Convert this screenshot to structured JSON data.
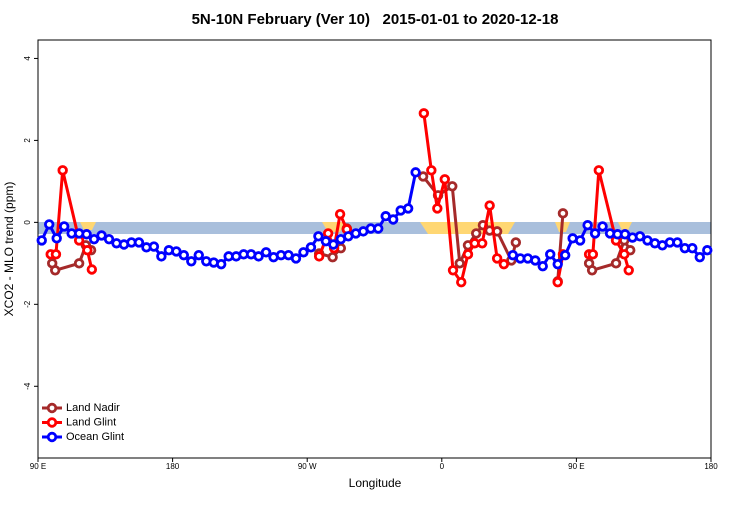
{
  "chart_data": {
    "type": "line",
    "title": "5N-10N February (Ver 10)   2015-01-01 to 2020-12-18",
    "x_label": "Longitude",
    "y_label": "XCO2 - MLO trend (ppm)",
    "xlim": [
      90,
      540
    ],
    "ylim": [
      -5.75,
      4.45
    ],
    "xticks": [
      {
        "value": 90,
        "label": "90 E"
      },
      180,
      {
        "value": 270,
        "label": "90 W"
      },
      {
        "value": 360,
        "label": "0"
      },
      {
        "value": 450,
        "label": "90 E"
      },
      {
        "value": 540,
        "label": "180"
      }
    ],
    "yticks": [
      -4,
      -2,
      0,
      2,
      4
    ],
    "legend": "bottom-left",
    "series": [
      {
        "name": "Land Nadir",
        "color": "#a52a2a",
        "x": [
          99.5,
          101.5,
          117.5,
          122,
          125.5,
          200,
          278,
          287,
          292.5,
          296.5,
          320,
          347.5,
          357.5,
          367,
          372,
          377.5,
          383,
          387.5,
          392,
          397,
          406.5,
          409.5,
          420,
          437.5,
          441,
          450,
          458.5,
          460.5,
          476.5,
          482,
          486
        ],
        "values": [
          -1.0,
          -1.17,
          -1.0,
          -0.56,
          -0.68,
          null,
          -0.76,
          -0.85,
          -0.63,
          -0.15,
          null,
          1.12,
          0.66,
          0.88,
          -1.0,
          -0.56,
          -0.27,
          -0.07,
          -0.2,
          -0.22,
          -0.93,
          -0.49,
          null,
          -1.44,
          0.22,
          null,
          -1.0,
          -1.17,
          -1.0,
          -0.44,
          -0.68
        ]
      },
      {
        "name": "Land Glint",
        "color": "#ff0000",
        "x": [
          98.5,
          102,
          106.5,
          117.5,
          123,
          126,
          200,
          278,
          284,
          288,
          292,
          296.5,
          320,
          348,
          353,
          357,
          362,
          367.5,
          373,
          377.5,
          382,
          387,
          392,
          397,
          401.5,
          420,
          437.5,
          441,
          450,
          458.5,
          461,
          465,
          476.5,
          482,
          485
        ],
        "values": [
          -0.78,
          -0.78,
          1.27,
          -0.44,
          -0.68,
          -1.15,
          null,
          -0.83,
          -0.27,
          -0.63,
          0.2,
          -0.17,
          null,
          2.66,
          1.27,
          0.34,
          1.05,
          -1.17,
          -1.46,
          -0.78,
          -0.51,
          -0.51,
          0.41,
          -0.88,
          -1.02,
          null,
          -1.46,
          -0.78,
          null,
          -0.78,
          -0.78,
          1.27,
          -0.44,
          -0.78,
          -1.17
        ]
      },
      {
        "name": "Ocean Glint",
        "color": "#0000ff",
        "x": [
          92.5,
          97.5,
          102.5,
          107.5,
          112.5,
          117.5,
          122.5,
          127.5,
          132.5,
          137.5,
          142.5,
          147.5,
          152.5,
          157.5,
          162.5,
          167.5,
          172.5,
          177.5,
          182.5,
          187.5,
          192.5,
          197.5,
          202.5,
          207.5,
          212.5,
          217.5,
          222.5,
          227.5,
          232.5,
          237.5,
          242.5,
          247.5,
          252.5,
          257.5,
          262.5,
          267.5,
          272.5,
          277.5,
          282.5,
          287.5,
          292.5,
          297.5,
          302.5,
          307.5,
          312.5,
          317.5,
          322.5,
          327.5,
          332.5,
          337.5,
          342.5,
          375,
          407.5,
          412.5,
          417.5,
          422.5,
          427.5,
          432.5,
          437.5,
          442.5,
          447.5,
          452.5,
          457.5,
          462.5,
          467.5,
          472.5,
          477.5,
          482.5,
          487.5,
          492.5,
          497.5,
          502.5,
          507.5,
          512.5,
          517.5,
          522.5,
          527.5,
          532.5,
          537.5
        ],
        "values": [
          -0.44,
          -0.05,
          -0.39,
          -0.1,
          -0.27,
          -0.27,
          -0.29,
          -0.41,
          -0.32,
          -0.41,
          -0.51,
          -0.54,
          -0.49,
          -0.49,
          -0.61,
          -0.59,
          -0.83,
          -0.68,
          -0.71,
          -0.8,
          -0.95,
          -0.8,
          -0.95,
          -0.98,
          -1.02,
          -0.83,
          -0.83,
          -0.78,
          -0.78,
          -0.83,
          -0.73,
          -0.85,
          -0.8,
          -0.8,
          -0.88,
          -0.73,
          -0.61,
          -0.34,
          -0.46,
          -0.54,
          -0.41,
          -0.34,
          -0.27,
          -0.22,
          -0.15,
          -0.15,
          0.15,
          0.07,
          0.29,
          0.34,
          1.22,
          null,
          -0.8,
          -0.88,
          -0.88,
          -0.93,
          -1.07,
          -0.78,
          -1.02,
          -0.8,
          -0.39,
          -0.44,
          -0.07,
          -0.27,
          -0.1,
          -0.27,
          -0.29,
          -0.29,
          -0.37,
          -0.34,
          -0.44,
          -0.51,
          -0.56,
          -0.49,
          -0.49,
          -0.63,
          -0.63,
          -0.85,
          -0.68
        ]
      }
    ]
  }
}
